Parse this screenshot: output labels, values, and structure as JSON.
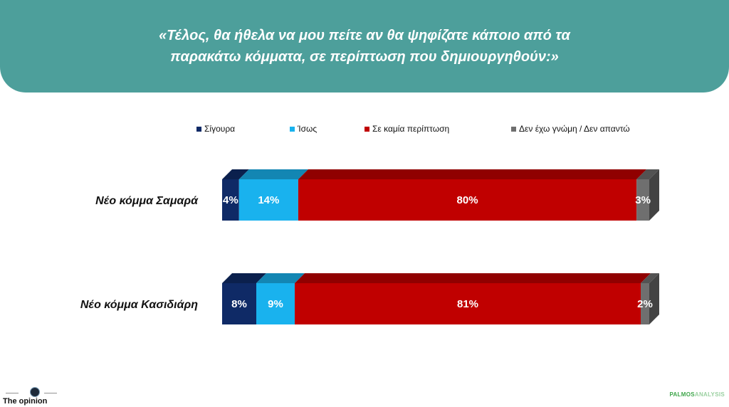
{
  "header": {
    "question_line1": "«Τέλος, θα ήθελα να μου πείτε αν θα ψηφίζατε κάποιο από τα",
    "question_line2": "παρακάτω κόμματα, σε περίπτωση που δημιουργηθούν:»"
  },
  "colors": {
    "banner": "#4d9f9b",
    "series": [
      "#0f2a66",
      "#19b2ee",
      "#c00000",
      "#6f6f6f"
    ]
  },
  "chart_data": {
    "type": "bar",
    "orientation": "horizontal",
    "stacked": true,
    "categories": [
      "Νέο κόμμα Σαμαρά",
      "Νέο κόμμα Κασιδιάρη"
    ],
    "series": [
      {
        "name": "Σίγουρα",
        "values": [
          4,
          8
        ],
        "labels": [
          "4%",
          "8%"
        ]
      },
      {
        "name": "Ίσως",
        "values": [
          14,
          9
        ],
        "labels": [
          "14%",
          "9%"
        ]
      },
      {
        "name": "Σε καμία περίπτωση",
        "values": [
          80,
          81
        ],
        "labels": [
          "80%",
          "81%"
        ]
      },
      {
        "name": "Δεν έχω γνώμη / Δεν απαντώ",
        "values": [
          3,
          2
        ],
        "labels": [
          "3%",
          "2%"
        ]
      }
    ],
    "legend": "top",
    "grid": false
  },
  "footer": {
    "left_logo": "The opinion",
    "right_logo_part1": "PALMOS",
    "right_logo_part2": "ANALYSIS"
  }
}
